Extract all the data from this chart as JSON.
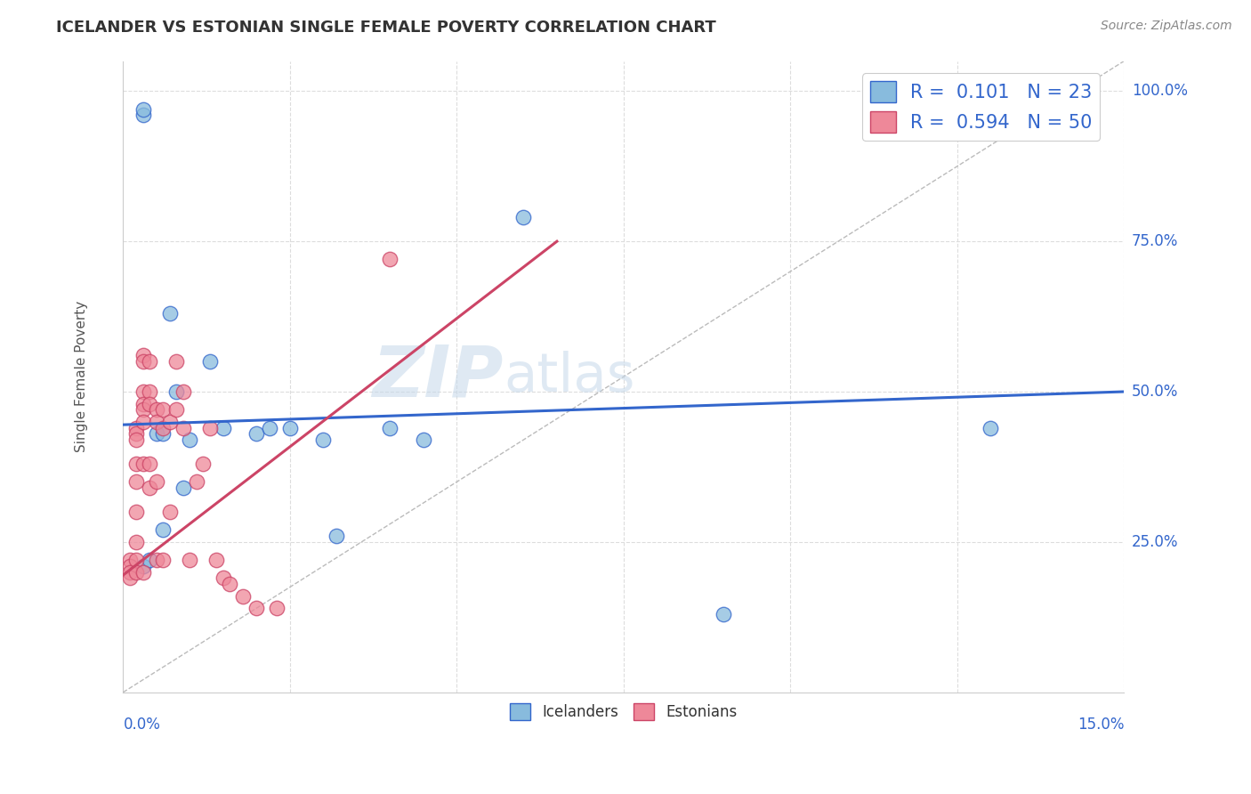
{
  "title": "ICELANDER VS ESTONIAN SINGLE FEMALE POVERTY CORRELATION CHART",
  "source": "Source: ZipAtlas.com",
  "ylabel": "Single Female Poverty",
  "legend_label1": "Icelanders",
  "legend_label2": "Estonians",
  "R_ice": 0.101,
  "N_ice": 23,
  "R_est": 0.594,
  "N_est": 50,
  "watermark": "ZIPatlas",
  "xmin": 0.0,
  "xmax": 0.15,
  "ymin": 0.0,
  "ymax": 1.05,
  "icelander_line_color": "#3366cc",
  "estonian_line_color": "#cc4466",
  "scatter_blue": "#88bbdd",
  "scatter_pink": "#ee8899",
  "icelanders_x": [
    0.003,
    0.003,
    0.003,
    0.004,
    0.005,
    0.006,
    0.006,
    0.007,
    0.008,
    0.009,
    0.01,
    0.013,
    0.015,
    0.02,
    0.022,
    0.025,
    0.03,
    0.032,
    0.04,
    0.045,
    0.06,
    0.09,
    0.13
  ],
  "icelanders_y": [
    0.96,
    0.97,
    0.21,
    0.22,
    0.43,
    0.43,
    0.27,
    0.63,
    0.5,
    0.34,
    0.42,
    0.55,
    0.44,
    0.43,
    0.44,
    0.44,
    0.42,
    0.26,
    0.44,
    0.42,
    0.79,
    0.13,
    0.44
  ],
  "estonians_x": [
    0.001,
    0.001,
    0.001,
    0.001,
    0.002,
    0.002,
    0.002,
    0.002,
    0.002,
    0.002,
    0.002,
    0.002,
    0.002,
    0.003,
    0.003,
    0.003,
    0.003,
    0.003,
    0.003,
    0.003,
    0.003,
    0.004,
    0.004,
    0.004,
    0.004,
    0.004,
    0.005,
    0.005,
    0.005,
    0.005,
    0.006,
    0.006,
    0.006,
    0.007,
    0.007,
    0.008,
    0.008,
    0.009,
    0.009,
    0.01,
    0.011,
    0.012,
    0.013,
    0.014,
    0.015,
    0.016,
    0.018,
    0.02,
    0.023,
    0.04
  ],
  "estonians_y": [
    0.22,
    0.21,
    0.2,
    0.19,
    0.44,
    0.43,
    0.42,
    0.38,
    0.35,
    0.3,
    0.25,
    0.22,
    0.2,
    0.56,
    0.55,
    0.5,
    0.48,
    0.47,
    0.45,
    0.38,
    0.2,
    0.55,
    0.5,
    0.48,
    0.38,
    0.34,
    0.47,
    0.45,
    0.35,
    0.22,
    0.47,
    0.44,
    0.22,
    0.45,
    0.3,
    0.55,
    0.47,
    0.5,
    0.44,
    0.22,
    0.35,
    0.38,
    0.44,
    0.22,
    0.19,
    0.18,
    0.16,
    0.14,
    0.14,
    0.72
  ],
  "ice_trend_x0": 0.0,
  "ice_trend_y0": 0.445,
  "ice_trend_x1": 0.15,
  "ice_trend_y1": 0.5,
  "est_trend_x0": 0.0,
  "est_trend_y0": 0.195,
  "est_trend_x1": 0.065,
  "est_trend_y1": 0.75
}
